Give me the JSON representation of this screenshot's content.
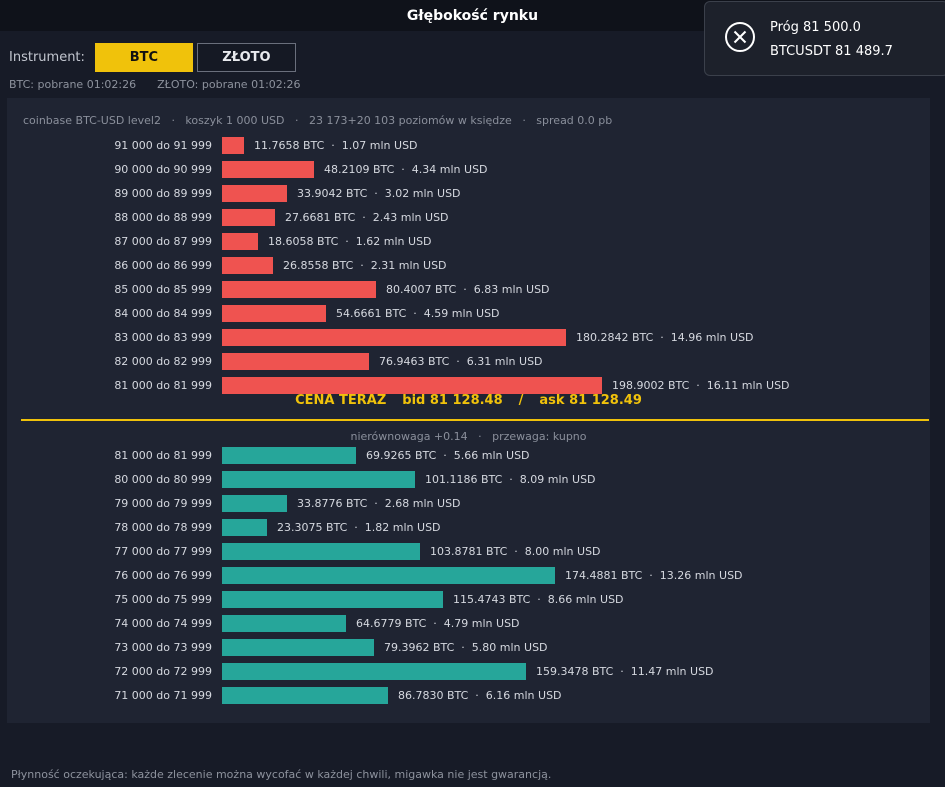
{
  "window": {
    "title": "Głębokość rynku"
  },
  "instrument": {
    "label": "Instrument:",
    "options": [
      {
        "label": "BTC",
        "selected": true
      },
      {
        "label": "ZŁOTO",
        "selected": false
      }
    ],
    "fetched": [
      "BTC: pobrane 01:02:26",
      "ZŁOTO: pobrane 01:02:26"
    ]
  },
  "book": {
    "meta": "coinbase BTC-USD level2   ·   koszyk 1 000 USD   ·   23 173+20 103 poziomów w księdze   ·   spread 0.0 pb",
    "price_now": {
      "label": "CENA TERAZ",
      "bid": "bid 81 128.48",
      "slash": "/",
      "ask": "ask 81 128.49"
    },
    "imbalance": "nierównowaga +0.14   ·   przewaga: kupno",
    "asks": [
      {
        "range": "91 000 do 91 999",
        "btc": "11.7658 BTC",
        "usd": "1.07 mln USD",
        "value": 11.7658
      },
      {
        "range": "90 000 do 90 999",
        "btc": "48.2109 BTC",
        "usd": "4.34 mln USD",
        "value": 48.2109
      },
      {
        "range": "89 000 do 89 999",
        "btc": "33.9042 BTC",
        "usd": "3.02 mln USD",
        "value": 33.9042
      },
      {
        "range": "88 000 do 88 999",
        "btc": "27.6681 BTC",
        "usd": "2.43 mln USD",
        "value": 27.6681
      },
      {
        "range": "87 000 do 87 999",
        "btc": "18.6058 BTC",
        "usd": "1.62 mln USD",
        "value": 18.6058
      },
      {
        "range": "86 000 do 86 999",
        "btc": "26.8558 BTC",
        "usd": "2.31 mln USD",
        "value": 26.8558
      },
      {
        "range": "85 000 do 85 999",
        "btc": "80.4007 BTC",
        "usd": "6.83 mln USD",
        "value": 80.4007
      },
      {
        "range": "84 000 do 84 999",
        "btc": "54.6661 BTC",
        "usd": "4.59 mln USD",
        "value": 54.6661
      },
      {
        "range": "83 000 do 83 999",
        "btc": "180.2842 BTC",
        "usd": "14.96 mln USD",
        "value": 180.2842
      },
      {
        "range": "82 000 do 82 999",
        "btc": "76.9463 BTC",
        "usd": "6.31 mln USD",
        "value": 76.9463
      },
      {
        "range": "81 000 do 81 999",
        "btc": "198.9002 BTC",
        "usd": "16.11 mln USD",
        "value": 198.9002
      }
    ],
    "bids": [
      {
        "range": "81 000 do 81 999",
        "btc": "69.9265 BTC",
        "usd": "5.66 mln USD",
        "value": 69.9265
      },
      {
        "range": "80 000 do 80 999",
        "btc": "101.1186 BTC",
        "usd": "8.09 mln USD",
        "value": 101.1186
      },
      {
        "range": "79 000 do 79 999",
        "btc": "33.8776 BTC",
        "usd": "2.68 mln USD",
        "value": 33.8776
      },
      {
        "range": "78 000 do 78 999",
        "btc": "23.3075 BTC",
        "usd": "1.82 mln USD",
        "value": 23.3075
      },
      {
        "range": "77 000 do 77 999",
        "btc": "103.8781 BTC",
        "usd": "8.00 mln USD",
        "value": 103.8781
      },
      {
        "range": "76 000 do 76 999",
        "btc": "174.4881 BTC",
        "usd": "13.26 mln USD",
        "value": 174.4881
      },
      {
        "range": "75 000 do 75 999",
        "btc": "115.4743 BTC",
        "usd": "8.66 mln USD",
        "value": 115.4743
      },
      {
        "range": "74 000 do 74 999",
        "btc": "64.6779 BTC",
        "usd": "4.79 mln USD",
        "value": 64.6779
      },
      {
        "range": "73 000 do 73 999",
        "btc": "79.3962 BTC",
        "usd": "5.80 mln USD",
        "value": 79.3962
      },
      {
        "range": "72 000 do 72 999",
        "btc": "159.3478 BTC",
        "usd": "11.47 mln USD",
        "value": 159.3478
      },
      {
        "range": "71 000 do 71 999",
        "btc": "86.7830 BTC",
        "usd": "6.16 mln USD",
        "value": 86.783
      }
    ],
    "colors": {
      "ask": "#ef5350",
      "bid": "#26a69a",
      "accent": "#f0c20b"
    }
  },
  "footer": "Płynność oczekująca: każde zlecenie można wycofać w każdej chwili, migawka nie jest gwarancją.",
  "toast": {
    "line1": "Próg 81 500.0",
    "line2": "BTCUSDT 81 489.7",
    "icon": "close-circle-icon"
  }
}
